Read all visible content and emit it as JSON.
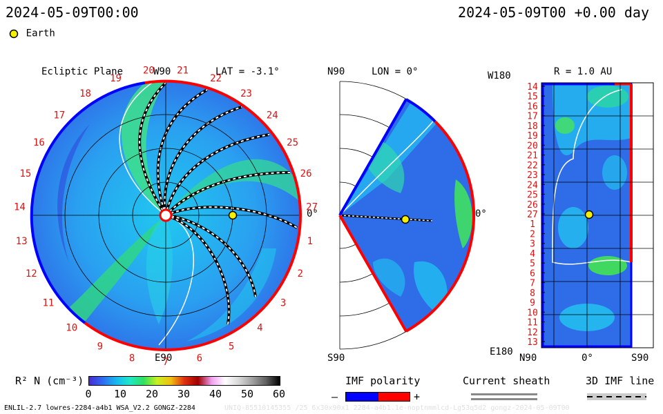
{
  "header": {
    "datetime_left": "2024-05-09T00:00",
    "datetime_right": "2024-05-09T00 +0.00 day",
    "legend_earth": "Earth"
  },
  "ecliptic": {
    "title": "Ecliptic Plane",
    "lat_label": "LAT = -3.1°",
    "top_label": "W90",
    "bottom_label": "E90",
    "right_label": "0°",
    "carrington_numbers": [
      "1",
      "2",
      "3",
      "4",
      "5",
      "6",
      "7",
      "8",
      "9",
      "10",
      "11",
      "12",
      "13",
      "14",
      "15",
      "16",
      "17",
      "18",
      "19",
      "20",
      "21",
      "22",
      "23",
      "24",
      "25",
      "26",
      "27"
    ]
  },
  "meridional": {
    "top_label": "N90",
    "bottom_label": "S90",
    "lon_label": "LON = 0°",
    "right_label": "0°"
  },
  "radial": {
    "title": "R = 1.0 AU",
    "top_left": "W180",
    "bottom_left": "E180",
    "bottom_labels": [
      "N90",
      "0°",
      "S90"
    ],
    "side_numbers": [
      "14",
      "15",
      "16",
      "17",
      "18",
      "19",
      "20",
      "21",
      "22",
      "23",
      "24",
      "25",
      "26",
      "27",
      "1",
      "2",
      "3",
      "4",
      "5",
      "6",
      "7",
      "8",
      "9",
      "10",
      "11",
      "12",
      "13"
    ]
  },
  "colorbar": {
    "label": "R² N (cm⁻³)",
    "ticks": [
      "0",
      "10",
      "20",
      "30",
      "40",
      "50",
      "60"
    ],
    "colors": [
      "#4a2ad6",
      "#2f6cf0",
      "#18b8f0",
      "#20e8c8",
      "#30e060",
      "#c8f020",
      "#f0c010",
      "#e03010",
      "#a00000",
      "#f0a0f0",
      "#ffffff",
      "#d8d8d8",
      "#a0a0a0",
      "#606060",
      "#000000"
    ]
  },
  "imf": {
    "title": "IMF polarity",
    "minus": "–",
    "plus": "+",
    "neg_color": "#0000ff",
    "pos_color": "#ff0000"
  },
  "sheath": {
    "title": "Current sheath"
  },
  "imfline": {
    "title": "3D IMF line"
  },
  "footer": {
    "left": "ENLIL-2.7 lowres-2284-a4b1 WSA_V2.2 GONGZ-2284",
    "right": "UNIQ-85510145355 /25 6x30x90x1 2284-a4b1.1e-noptnmmlcd-Lg53q5d2 gongz-2024-05-09T00"
  }
}
